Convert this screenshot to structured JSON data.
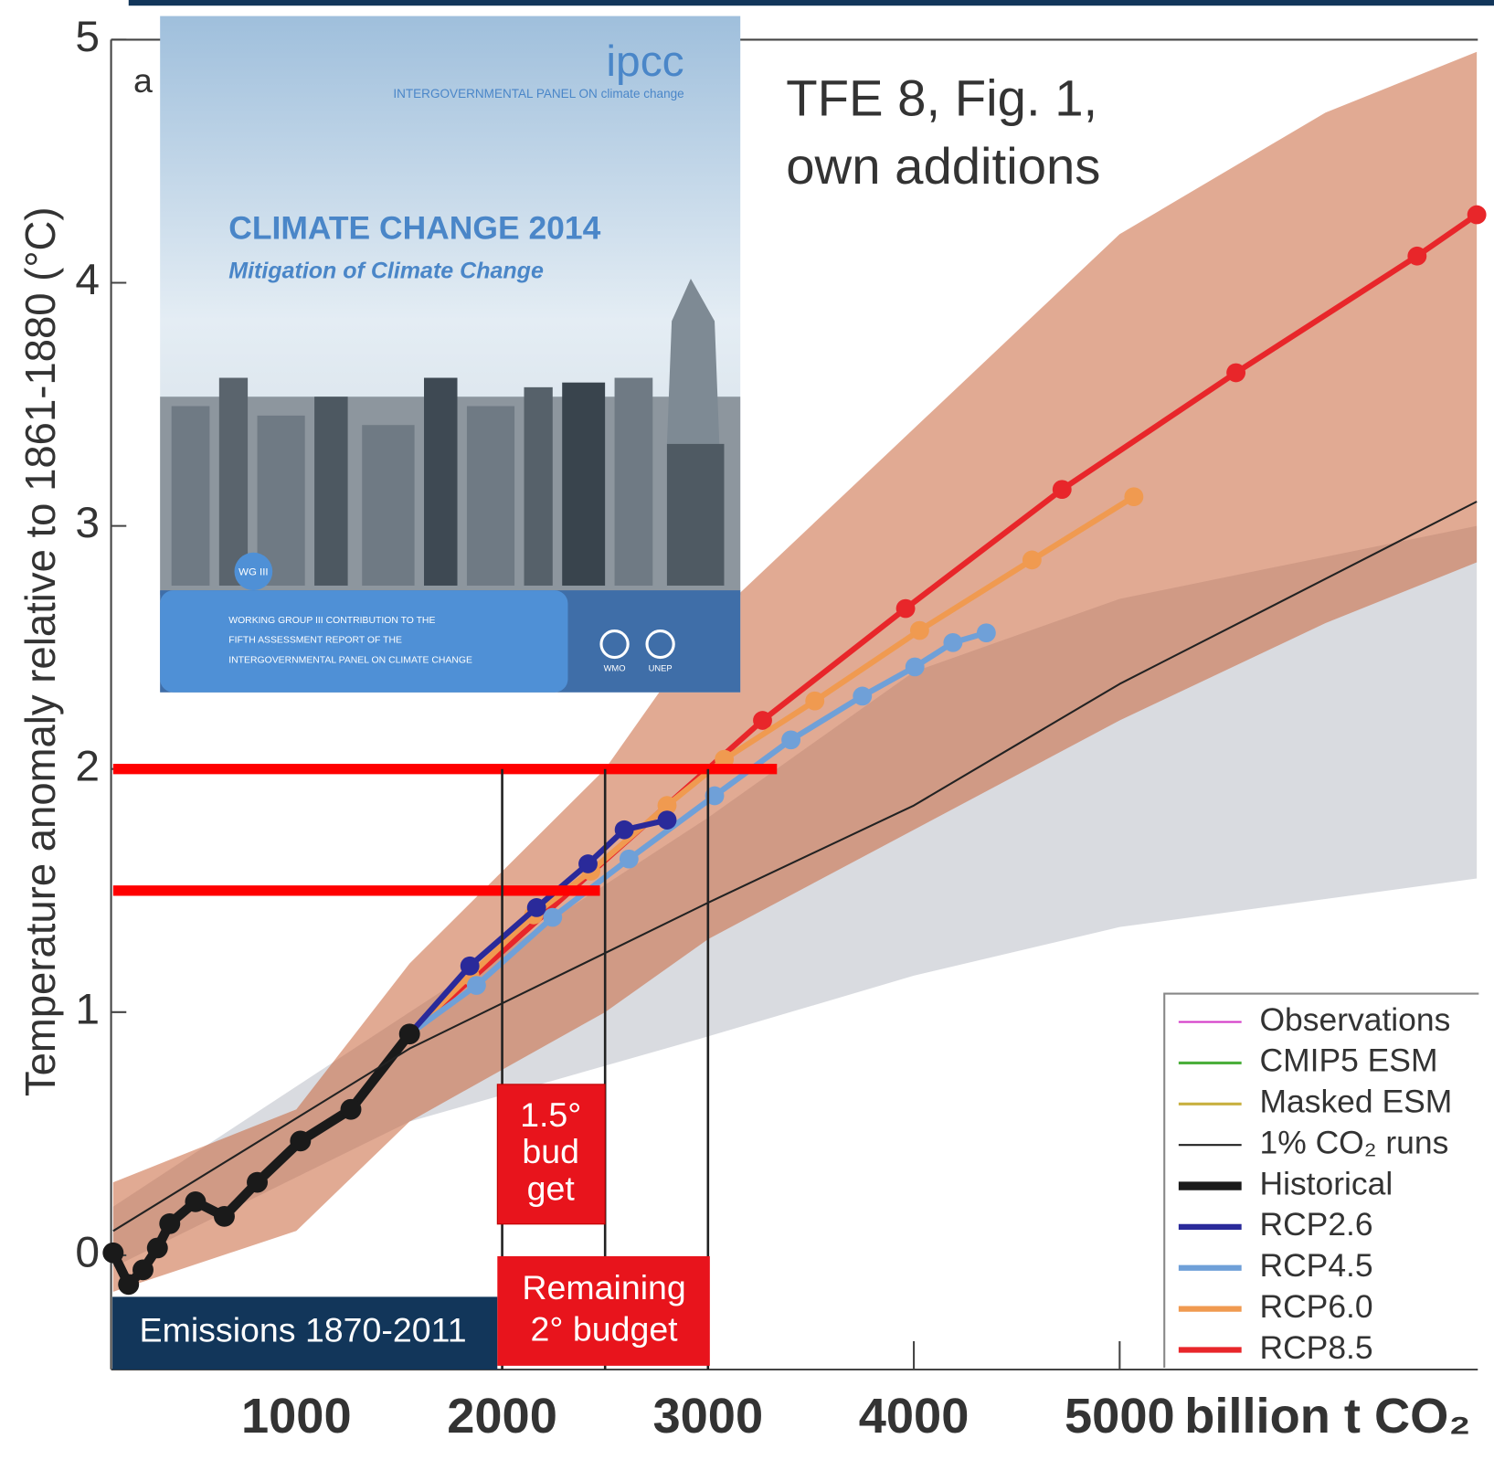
{
  "chart_data": {
    "type": "line",
    "panel_label": "a",
    "title": [
      "TFE 8, Fig. 1,",
      "own additions"
    ],
    "y_label": "Temperature anomaly relative to 1861-1880 (°C)",
    "x_label": "billion t CO₂",
    "xlim": [
      100,
      6740
    ],
    "ylim": [
      -0.5,
      5
    ],
    "xticks": [
      1000,
      2000,
      3000,
      4000,
      5000
    ],
    "yticks": [
      0,
      1,
      2,
      3,
      4,
      5
    ],
    "bands": [
      {
        "color": "#b9bec6",
        "x": [
          110,
          1550,
          3000,
          4000,
          5000,
          6735
        ],
        "upper": [
          0.2,
          1.0,
          1.8,
          2.4,
          2.7,
          3.0
        ],
        "lower": [
          -0.05,
          0.55,
          0.9,
          1.15,
          1.35,
          1.55
        ]
      },
      {
        "color": "#c8643a",
        "x": [
          110,
          1000,
          1550,
          2500,
          3000,
          4000,
          5000,
          6000,
          6735
        ],
        "upper": [
          0.3,
          0.6,
          1.2,
          2.0,
          2.6,
          3.4,
          4.2,
          4.7,
          4.95
        ],
        "lower": [
          -0.15,
          0.1,
          0.55,
          1.0,
          1.3,
          1.75,
          2.2,
          2.6,
          2.85
        ]
      }
    ],
    "series": [
      {
        "name": "Observations",
        "color": "#d43cc8",
        "linewidth": 2
      },
      {
        "name": "CMIP5 ESM",
        "color": "#4caf3c",
        "linewidth": 3
      },
      {
        "name": "Masked ESM",
        "color": "#c8b040",
        "linewidth": 3
      },
      {
        "name": "1% CO₂ runs",
        "color": "#222222",
        "linewidth": 2,
        "x": [
          110,
          1550,
          3000,
          4000,
          5000,
          6735
        ],
        "values": [
          0.1,
          0.85,
          1.45,
          1.85,
          2.35,
          3.1
        ]
      },
      {
        "name": "Historical",
        "color": "#1a1a1a",
        "linewidth": 10,
        "marker": true,
        "x": [
          110,
          185,
          255,
          325,
          385,
          510,
          650,
          810,
          1020,
          1265,
          1550
        ],
        "values": [
          0.01,
          -0.12,
          -0.06,
          0.03,
          0.13,
          0.22,
          0.16,
          0.3,
          0.47,
          0.6,
          0.91
        ]
      },
      {
        "name": "RCP2.6",
        "color": "#2a2a9a",
        "linewidth": 6,
        "marker": true,
        "x": [
          1550,
          1843,
          2167,
          2417,
          2593,
          2801
        ],
        "values": [
          0.91,
          1.19,
          1.43,
          1.61,
          1.75,
          1.79
        ]
      },
      {
        "name": "RCP4.5",
        "color": "#6fa0d8",
        "linewidth": 6,
        "marker": true,
        "x": [
          1550,
          1875,
          2245,
          2616,
          3032,
          3403,
          3750,
          4005,
          4190,
          4352
        ],
        "values": [
          0.91,
          1.11,
          1.39,
          1.63,
          1.89,
          2.12,
          2.3,
          2.42,
          2.52,
          2.56
        ]
      },
      {
        "name": "RCP6.0",
        "color": "#f09a50",
        "linewidth": 6,
        "marker": true,
        "x": [
          1550,
          1843,
          2153,
          2431,
          2801,
          3079,
          3519,
          4028,
          4574,
          5069
        ],
        "values": [
          0.91,
          1.15,
          1.4,
          1.58,
          1.85,
          2.04,
          2.28,
          2.57,
          2.86,
          3.12
        ]
      },
      {
        "name": "RCP8.5",
        "color": "#e8262a",
        "linewidth": 6,
        "marker": true,
        "x": [
          1550,
          3265,
          3960,
          4720,
          5565,
          6445,
          6735
        ],
        "values": [
          0.91,
          2.2,
          2.66,
          3.15,
          3.63,
          4.11,
          4.28
        ]
      }
    ],
    "budget_lines": [
      {
        "y": 2,
        "x": [
          110,
          3335
        ],
        "color": "#ff0000"
      },
      {
        "y": 1.5,
        "x": [
          110,
          2475
        ],
        "color": "#ff0000"
      }
    ],
    "budget_marks": {
      "x": [
        2000,
        2500,
        3000
      ],
      "top": 2
    },
    "notes": {
      "emissions": "Emissions 1870-2011",
      "budget_15": [
        "1.5°",
        "bud",
        "get"
      ],
      "budget_2": [
        "Remaining",
        "2° budget"
      ]
    },
    "inset": {
      "logo": "ipcc",
      "org": "INTERGOVERNMENTAL PANEL ON climate change",
      "title": "CLIMATE CHANGE 2014",
      "subtitle": "Mitigation of Climate Change",
      "badge": "WG III",
      "lines": [
        "WORKING GROUP III CONTRIBUTION TO THE",
        "FIFTH ASSESSMENT REPORT OF THE",
        "INTERGOVERNMENTAL PANEL ON CLIMATE CHANGE"
      ],
      "logos": [
        "WMO",
        "UNEP"
      ]
    }
  }
}
